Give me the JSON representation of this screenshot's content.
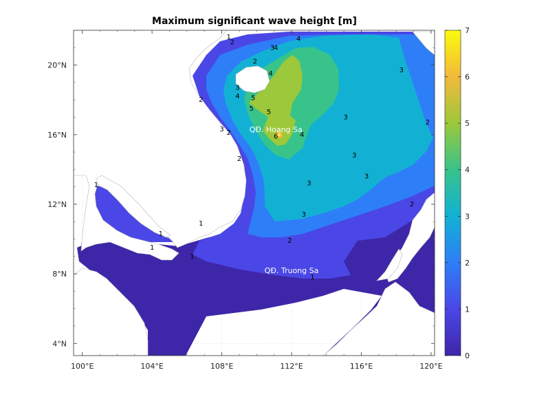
{
  "chart_data": {
    "type": "heatmap",
    "title": "Maximum significant wave height [m]",
    "xlim": [
      99.5,
      120.2
    ],
    "ylim": [
      3.3,
      22
    ],
    "x_ticks": [
      100,
      104,
      108,
      112,
      116,
      120
    ],
    "x_tick_labels": [
      "100°E",
      "104°E",
      "108°E",
      "112°E",
      "116°E",
      "120°E"
    ],
    "y_ticks": [
      4,
      8,
      12,
      16,
      20
    ],
    "y_tick_labels": [
      "4°N",
      "8°N",
      "12°N",
      "16°N",
      "20°N"
    ],
    "grid": true,
    "colorbar": {
      "min": 0,
      "max": 7,
      "ticks": [
        0,
        1,
        2,
        3,
        4,
        5,
        6,
        7
      ],
      "tick_labels": [
        "0",
        "1",
        "2",
        "3",
        "4",
        "5",
        "6",
        "7"
      ],
      "colormap": "parula"
    },
    "contour_levels": [
      1,
      2,
      3,
      4,
      5,
      6
    ],
    "contour_labels": [
      {
        "text": "1",
        "lon": 108.4,
        "lat": 21.6
      },
      {
        "text": "2",
        "lon": 108.6,
        "lat": 21.3
      },
      {
        "text": "2",
        "lon": 109.9,
        "lat": 20.2
      },
      {
        "text": "3",
        "lon": 110.9,
        "lat": 21.0
      },
      {
        "text": "4",
        "lon": 111.1,
        "lat": 21.0
      },
      {
        "text": "4",
        "lon": 112.4,
        "lat": 21.5
      },
      {
        "text": "4",
        "lon": 110.8,
        "lat": 19.5
      },
      {
        "text": "3",
        "lon": 108.9,
        "lat": 18.7
      },
      {
        "text": "4",
        "lon": 108.9,
        "lat": 18.2
      },
      {
        "text": "5",
        "lon": 109.8,
        "lat": 18.1
      },
      {
        "text": "5",
        "lon": 109.7,
        "lat": 17.5
      },
      {
        "text": "5",
        "lon": 110.7,
        "lat": 17.3
      },
      {
        "text": "2",
        "lon": 106.8,
        "lat": 18.0
      },
      {
        "text": "3",
        "lon": 118.3,
        "lat": 19.7
      },
      {
        "text": "3",
        "lon": 115.1,
        "lat": 17.0
      },
      {
        "text": "2",
        "lon": 119.8,
        "lat": 16.7
      },
      {
        "text": "3",
        "lon": 108.0,
        "lat": 16.3
      },
      {
        "text": "2",
        "lon": 108.4,
        "lat": 16.1
      },
      {
        "text": "6",
        "lon": 111.1,
        "lat": 15.9
      },
      {
        "text": "4",
        "lon": 112.6,
        "lat": 16.0
      },
      {
        "text": "2",
        "lon": 109.0,
        "lat": 14.6
      },
      {
        "text": "3",
        "lon": 115.6,
        "lat": 14.8
      },
      {
        "text": "3",
        "lon": 116.3,
        "lat": 13.6
      },
      {
        "text": "3",
        "lon": 113.0,
        "lat": 13.2
      },
      {
        "text": "2",
        "lon": 118.9,
        "lat": 12.0
      },
      {
        "text": "3",
        "lon": 112.7,
        "lat": 11.4
      },
      {
        "text": "1",
        "lon": 100.8,
        "lat": 13.1
      },
      {
        "text": "1",
        "lon": 106.8,
        "lat": 10.9
      },
      {
        "text": "2",
        "lon": 111.9,
        "lat": 9.9
      },
      {
        "text": "1",
        "lon": 104.5,
        "lat": 10.3
      },
      {
        "text": "1",
        "lon": 104.0,
        "lat": 9.5
      },
      {
        "text": "1",
        "lon": 106.3,
        "lat": 9.0
      },
      {
        "text": "1",
        "lon": 113.2,
        "lat": 7.8
      }
    ],
    "annotations": [
      {
        "text": "QĐ. Hoang Sa",
        "lon": 111.1,
        "lat": 16.3
      },
      {
        "text": "QĐ. Truong Sa",
        "lon": 112.0,
        "lat": 8.2
      }
    ]
  }
}
